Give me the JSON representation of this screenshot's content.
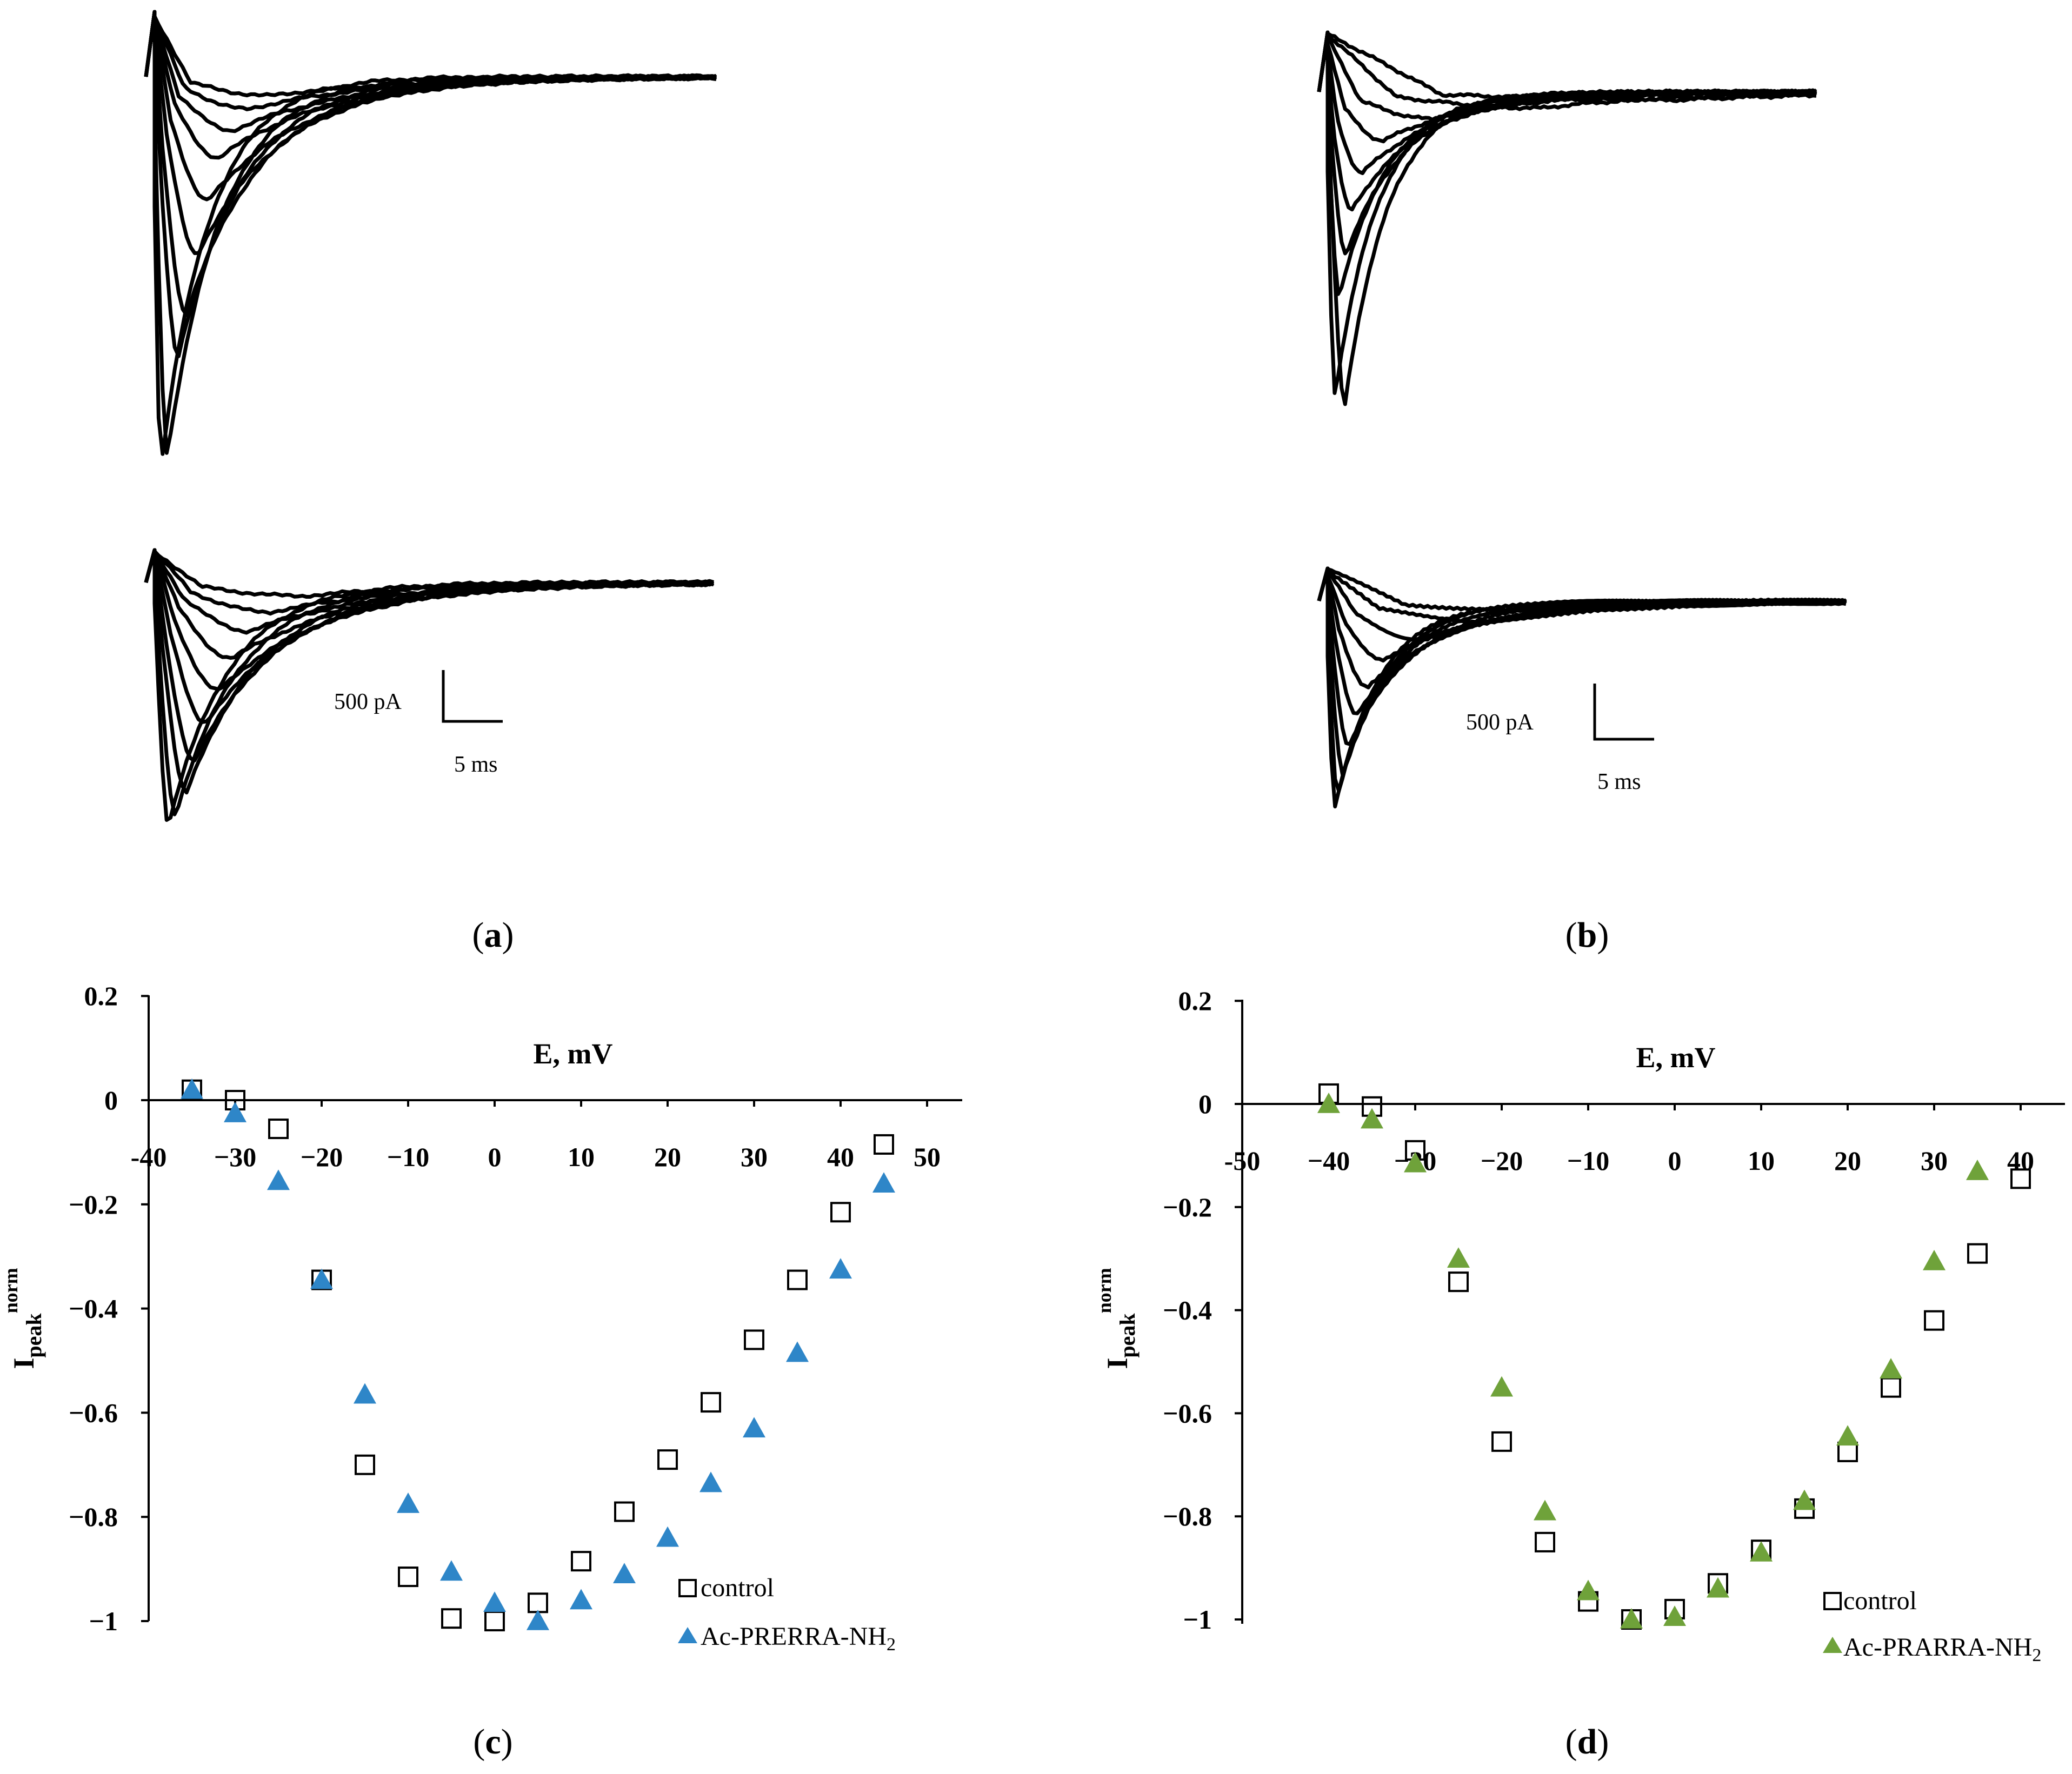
{
  "panels": {
    "a": {
      "label": "a"
    },
    "b": {
      "label": "b"
    },
    "c": {
      "label": "c"
    },
    "d": {
      "label": "d"
    }
  },
  "scale_bars": {
    "a": {
      "current": "500 pA",
      "time": "5 ms"
    },
    "b": {
      "current": "500 pA",
      "time": "5 ms"
    }
  },
  "chart_data": [
    {
      "panel": "c",
      "type": "scatter",
      "xlabel": "E, mV",
      "ylabel": "I",
      "ylabel_sub": "peak",
      "ylabel_sup": "norm",
      "xlim": [
        -40,
        55
      ],
      "ylim": [
        -1.0,
        0.2
      ],
      "xticks": [
        -40,
        -30,
        -20,
        -10,
        0,
        10,
        20,
        30,
        40,
        50
      ],
      "xtick_labels": [
        "-40",
        "−30",
        "−20",
        "−10",
        "0",
        "10",
        "20",
        "30",
        "40",
        "50"
      ],
      "yticks": [
        0.2,
        0,
        -0.2,
        -0.4,
        -0.6,
        -0.8,
        -1
      ],
      "ytick_labels": [
        "0.2",
        "0",
        "−0.2",
        "−0.4",
        "−0.6",
        "−0.8",
        "−1"
      ],
      "legend_position": "bottom-right",
      "series": [
        {
          "name": "control",
          "marker": "open-square",
          "color": "#000000",
          "x": [
            -35,
            -30,
            -25,
            -20,
            -15,
            -10,
            -5,
            0,
            5,
            10,
            15,
            20,
            25,
            30,
            35,
            40,
            45
          ],
          "y": [
            0.02,
            0.0,
            -0.055,
            -0.345,
            -0.7,
            -0.915,
            -0.995,
            -1.0,
            -0.965,
            -0.885,
            -0.79,
            -0.69,
            -0.58,
            -0.46,
            -0.345,
            -0.215,
            -0.085
          ]
        },
        {
          "name": "Ac-PRERRA-NH",
          "name_sub": "2",
          "marker": "filled-triangle",
          "color": "#2E86C8",
          "x": [
            -35,
            -30,
            -25,
            -20,
            -15,
            -10,
            -5,
            0,
            5,
            10,
            15,
            20,
            25,
            30,
            35,
            40,
            45
          ],
          "y": [
            0.02,
            -0.025,
            -0.155,
            -0.345,
            -0.565,
            -0.775,
            -0.905,
            -0.965,
            -1.0,
            -0.96,
            -0.91,
            -0.84,
            -0.735,
            -0.63,
            -0.485,
            -0.325,
            -0.16
          ]
        }
      ]
    },
    {
      "panel": "d",
      "type": "scatter",
      "xlabel": "E, mV",
      "ylabel": "I",
      "ylabel_sub": "peak",
      "ylabel_sup": "norm",
      "xlim": [
        -50,
        45
      ],
      "ylim": [
        -1.0,
        0.2
      ],
      "xticks": [
        -50,
        -40,
        -30,
        -20,
        -10,
        0,
        10,
        20,
        30,
        40
      ],
      "xtick_labels": [
        "-50",
        "−40",
        "−30",
        "−20",
        "−10",
        "0",
        "10",
        "20",
        "30",
        "40"
      ],
      "yticks": [
        0.2,
        0,
        -0.2,
        -0.4,
        -0.6,
        -0.8,
        -1
      ],
      "ytick_labels": [
        "0.2",
        "0",
        "−0.2",
        "−0.4",
        "−0.6",
        "−0.8",
        "−1"
      ],
      "legend_position": "bottom-right",
      "series": [
        {
          "name": "control",
          "marker": "open-square",
          "color": "#000000",
          "x": [
            -40,
            -35,
            -30,
            -25,
            -20,
            -15,
            -10,
            -5,
            0,
            5,
            10,
            15,
            20,
            25,
            30,
            35,
            40
          ],
          "y": [
            0.02,
            -0.005,
            -0.09,
            -0.345,
            -0.655,
            -0.85,
            -0.965,
            -1.0,
            -0.98,
            -0.93,
            -0.865,
            -0.785,
            -0.675,
            -0.55,
            -0.42,
            -0.29,
            -0.145
          ]
        },
        {
          "name": "Ac-PRARRA-NH",
          "name_sub": "2",
          "marker": "filled-triangle",
          "color": "#6FA23A",
          "x": [
            -40,
            -35,
            -30,
            -25,
            -20,
            -15,
            -10,
            -5,
            0,
            5,
            10,
            15,
            20,
            25,
            30,
            35
          ],
          "y": [
            0.0,
            -0.03,
            -0.115,
            -0.3,
            -0.55,
            -0.79,
            -0.945,
            -1.0,
            -0.995,
            -0.94,
            -0.87,
            -0.77,
            -0.645,
            -0.515,
            -0.305,
            -0.13
          ]
        }
      ]
    }
  ]
}
